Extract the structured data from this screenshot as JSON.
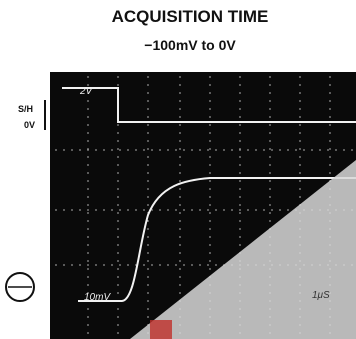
{
  "header": {
    "title": "ACQUISITION TIME",
    "subtitle": "−100mV to 0V"
  },
  "labels": {
    "sh": "S/H",
    "zero": "0V",
    "upper_scale": "2V",
    "lower_scale": "10mV",
    "time_scale": "1μS"
  }
}
